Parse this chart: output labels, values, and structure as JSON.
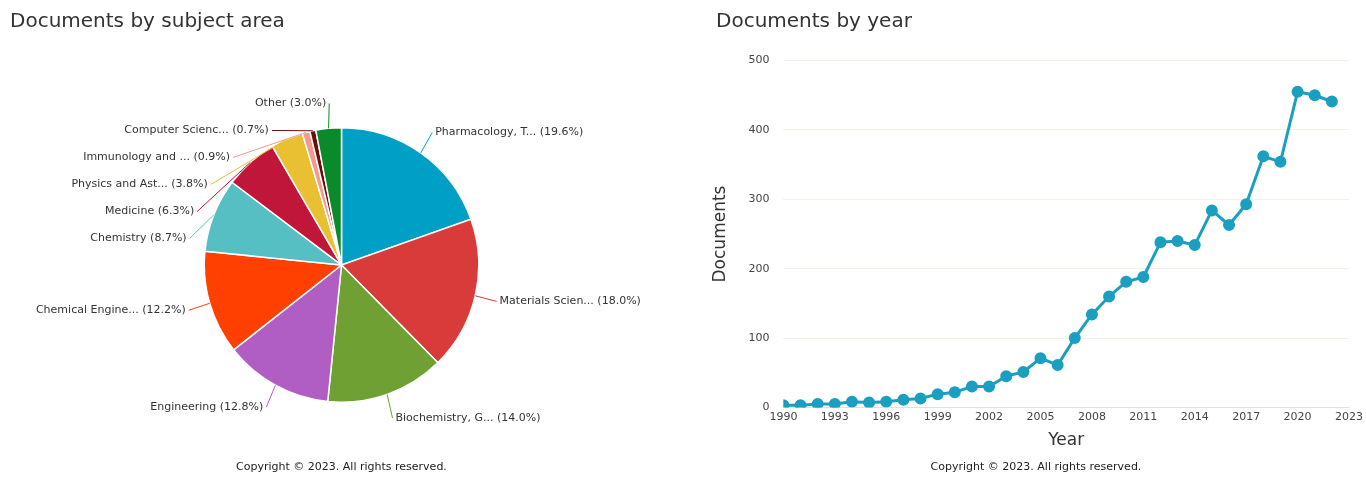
{
  "chart_data": [
    {
      "type": "pie",
      "title": "Documents by subject area",
      "categories": [
        "Pharmacology, T... (19.6%)",
        "Materials Scien... (18.0%)",
        "Biochemistry, G... (14.0%)",
        "Engineering (12.8%)",
        "Chemical Engine... (12.2%)",
        "Chemistry (8.7%)",
        "Medicine (6.3%)",
        "Physics and Ast... (3.8%)",
        "Immunology and ... (0.9%)",
        "Computer Scienc... (0.7%)",
        "Other (3.0%)"
      ],
      "values": [
        19.6,
        18.0,
        14.0,
        12.8,
        12.2,
        8.7,
        6.3,
        3.8,
        0.9,
        0.7,
        3.0
      ],
      "colors": [
        "#00a0c6",
        "#d93b3b",
        "#6fa033",
        "#b05ec3",
        "#ff4000",
        "#55bfc3",
        "#c0163a",
        "#e8c032",
        "#f29a8e",
        "#6b0d0d",
        "#0a8a2a"
      ],
      "legend": false,
      "annotations": [
        "Copyright © 2023. All rights reserved."
      ]
    },
    {
      "type": "line",
      "title": "Documents by year",
      "xlabel": "Year",
      "ylabel": "Documents",
      "x": [
        1990,
        1991,
        1992,
        1993,
        1994,
        1995,
        1996,
        1997,
        1998,
        1999,
        2000,
        2001,
        2002,
        2003,
        2004,
        2005,
        2006,
        2007,
        2008,
        2009,
        2010,
        2011,
        2012,
        2013,
        2014,
        2015,
        2016,
        2017,
        2018,
        2019,
        2020,
        2021,
        2022
      ],
      "series": [
        {
          "color": "#1a9fc0",
          "values": [
            3,
            3,
            5,
            5,
            8,
            7,
            8,
            11,
            13,
            19,
            22,
            30,
            30,
            45,
            51,
            71,
            61,
            100,
            134,
            160,
            181,
            188,
            238,
            240,
            234,
            284,
            263,
            293,
            362,
            354,
            455,
            450,
            441
          ]
        }
      ],
      "xlim": [
        1990,
        2023
      ],
      "xticks": [
        1990,
        1993,
        1996,
        1999,
        2002,
        2005,
        2008,
        2011,
        2014,
        2017,
        2020,
        2023
      ],
      "ylim": [
        0,
        500
      ],
      "yticks": [
        0,
        100,
        200,
        300,
        400,
        500
      ],
      "grid": "y",
      "legend": false,
      "marker": "circle",
      "line_style": "solid",
      "annotations": [
        "Copyright © 2023. All rights reserved."
      ]
    }
  ]
}
